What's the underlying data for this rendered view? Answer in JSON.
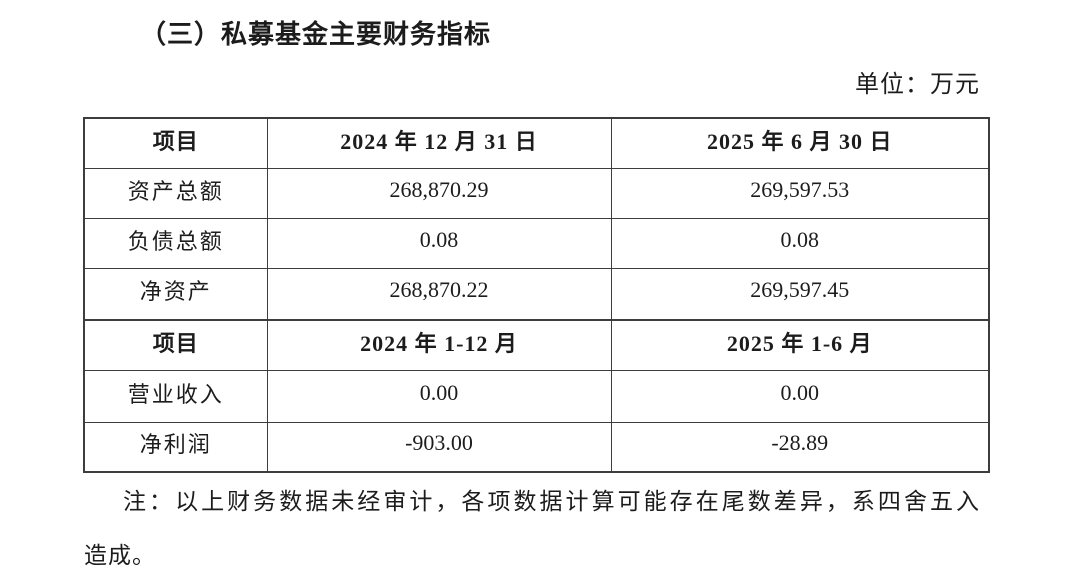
{
  "document": {
    "section_title": "（三）私募基金主要财务指标",
    "unit_label": "单位：万元",
    "note_line1": "注：以上财务数据未经审计，各项数据计算可能存在尾数差异，系四舍五入",
    "note_line2": "造成。"
  },
  "table": {
    "rows": [
      {
        "style": "header",
        "cells": [
          "项目",
          "2024 年 12 月 31 日",
          "2025 年 6 月 30 日"
        ]
      },
      {
        "style": "data",
        "cells": [
          "资产总额",
          "268,870.29",
          "269,597.53"
        ]
      },
      {
        "style": "data",
        "cells": [
          "负债总额",
          "0.08",
          "0.08"
        ]
      },
      {
        "style": "data",
        "cells": [
          "净资产",
          "268,870.22",
          "269,597.45"
        ]
      },
      {
        "style": "header",
        "cells": [
          "项目",
          "2024 年 1-12 月",
          "2025 年 1-6 月"
        ]
      },
      {
        "style": "data",
        "cells": [
          "营业收入",
          "0.00",
          "0.00"
        ]
      },
      {
        "style": "data",
        "cells": [
          "净利润",
          "-903.00",
          "-28.89"
        ]
      }
    ]
  },
  "colors": {
    "text": "#1c1c1c",
    "border": "#3d3d3d",
    "background": "#ffffff"
  }
}
